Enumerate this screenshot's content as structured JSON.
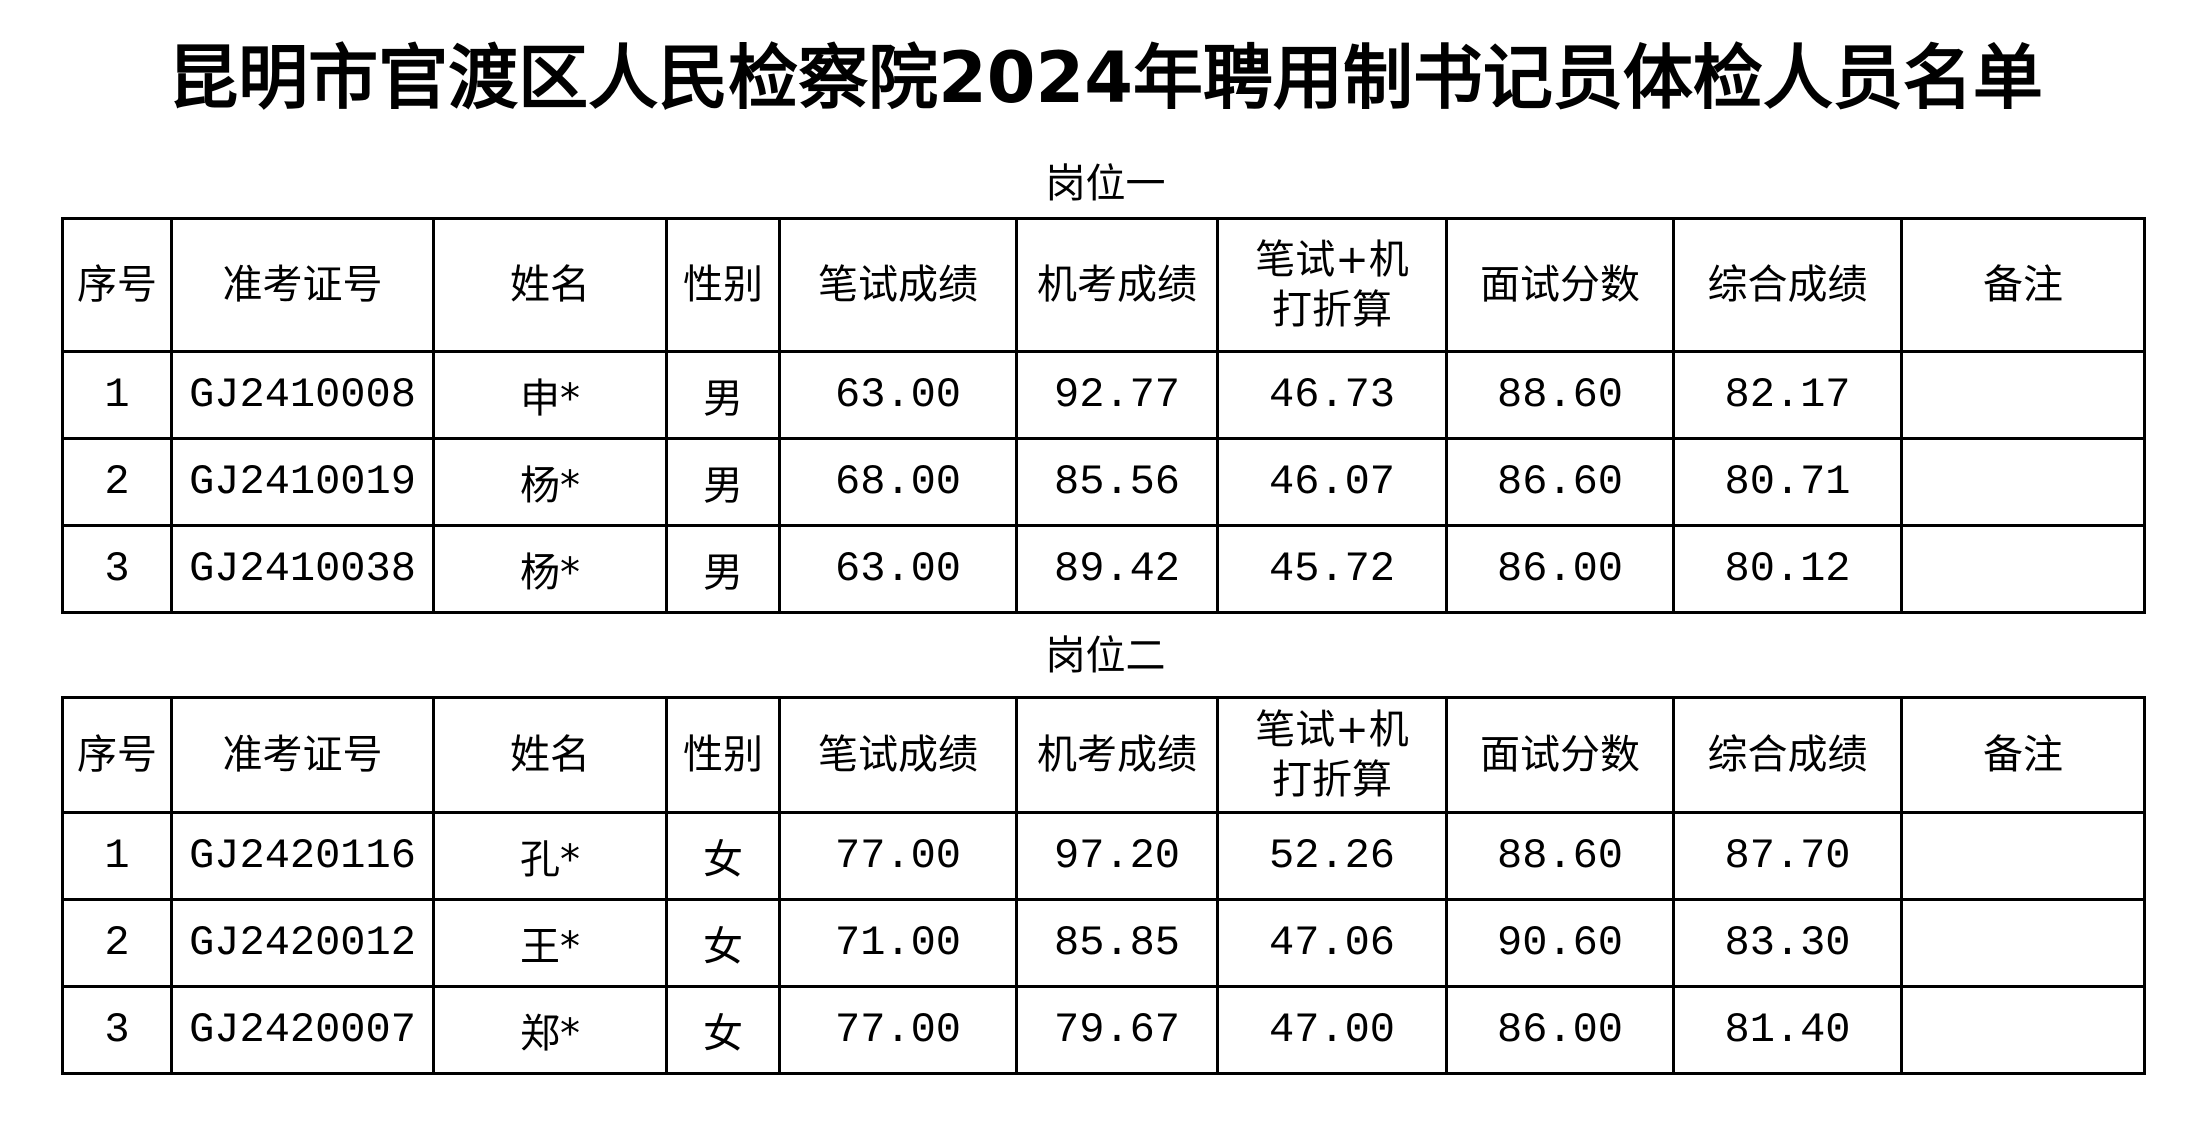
{
  "title": "昆明市官渡区人民检察院2024年聘用制书记员体检人员名单",
  "headers": [
    "序号",
    "准考证号",
    "姓名",
    "性别",
    "笔试成绩",
    "机考成绩",
    "笔试+机打折算",
    "面试分数",
    "综合成绩",
    "备注"
  ],
  "sections": [
    {
      "label": "岗位一",
      "rows": [
        [
          "1",
          "GJ2410008",
          "申*",
          "男",
          "63.00",
          "92.77",
          "46.73",
          "88.60",
          "82.17",
          ""
        ],
        [
          "2",
          "GJ2410019",
          "杨*",
          "男",
          "68.00",
          "85.56",
          "46.07",
          "86.60",
          "80.71",
          ""
        ],
        [
          "3",
          "GJ2410038",
          "杨*",
          "男",
          "63.00",
          "89.42",
          "45.72",
          "86.00",
          "80.12",
          ""
        ]
      ]
    },
    {
      "label": "岗位二",
      "rows": [
        [
          "1",
          "GJ2420116",
          "孔*",
          "女",
          "77.00",
          "97.20",
          "52.26",
          "88.60",
          "87.70",
          ""
        ],
        [
          "2",
          "GJ2420012",
          "王*",
          "女",
          "71.00",
          "85.85",
          "47.06",
          "90.60",
          "83.30",
          ""
        ],
        [
          "3",
          "GJ2420007",
          "郑*",
          "女",
          "77.00",
          "79.67",
          "47.00",
          "86.00",
          "81.40",
          ""
        ]
      ]
    }
  ]
}
